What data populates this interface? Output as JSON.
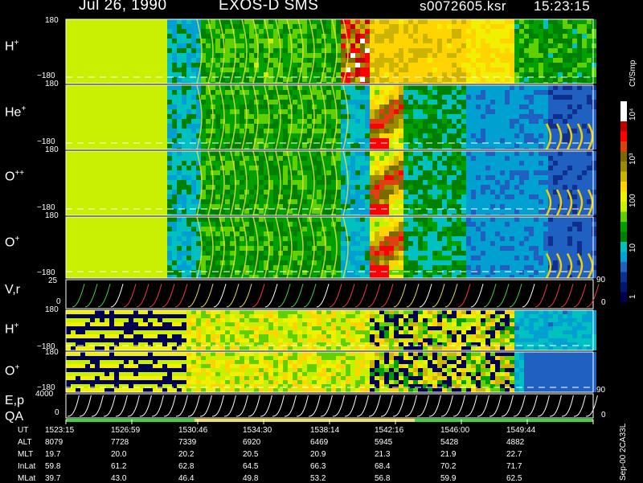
{
  "header": {
    "date": "Jul 26, 1990",
    "instrument": "EXOS-D SMS",
    "file": "s0072605.ksr",
    "time": "15:23:15"
  },
  "colorbar": {
    "title": "Ct/Smp",
    "labels": [
      "10⁴",
      "10³",
      "100",
      "10",
      "1"
    ],
    "colors": [
      "#ffffff",
      "#ffffff",
      "#c00000",
      "#ff0000",
      "#e04010",
      "#7a6a00",
      "#9a8a00",
      "#ccb400",
      "#ffd400",
      "#f0f000",
      "#c8f000",
      "#60d000",
      "#00a000",
      "#008000",
      "#00c0c0",
      "#00a0d0",
      "#2060c0",
      "#103090",
      "#001870",
      "#000050"
    ]
  },
  "panels": [
    {
      "label": "H",
      "charge": "+",
      "ytop": "180",
      "ybot": "−180"
    },
    {
      "label": "He",
      "charge": "+",
      "ytop": "180",
      "ybot": "−180"
    },
    {
      "label": "O",
      "charge": "++",
      "ytop": "180",
      "ybot": "−180"
    },
    {
      "label": "O",
      "charge": "+",
      "ytop": "180",
      "ybot": "−180"
    }
  ],
  "vr_panel": {
    "label": "V,r",
    "ytop": "25",
    "ybot": "0",
    "rtop": "90",
    "rbot": "0"
  },
  "panels2": [
    {
      "label": "H",
      "charge": "+",
      "ytop": "180",
      "ybot": "−180"
    },
    {
      "label": "O",
      "charge": "+",
      "ytop": "180",
      "ybot": "−180"
    }
  ],
  "ep_panel": {
    "label1": "E,p",
    "label2": "QA",
    "ytop": "4000",
    "ybot": "0",
    "rtop": "90",
    "rbot": "0"
  },
  "footer_note": "Sep-00 2CA33L",
  "ut_table": {
    "rows": [
      {
        "name": "UT",
        "values": [
          "1523:15",
          "1526:59",
          "1530:46",
          "1534:30",
          "1538:14",
          "1542:16",
          "1546:00",
          "1549:44"
        ]
      },
      {
        "name": "ALT",
        "values": [
          "8079",
          "7728",
          "7339",
          "6920",
          "6469",
          "5945",
          "5428",
          "4882"
        ]
      },
      {
        "name": "MLT",
        "values": [
          "19.7",
          "20.0",
          "20.2",
          "20.5",
          "20.9",
          "21.3",
          "21.9",
          "22.7"
        ]
      },
      {
        "name": "InLat",
        "values": [
          "59.8",
          "61.2",
          "62.8",
          "64.5",
          "66.3",
          "68.4",
          "70.2",
          "71.7"
        ]
      },
      {
        "name": "MLat",
        "values": [
          "39.7",
          "43.0",
          "46.4",
          "49.8",
          "53.2",
          "56.8",
          "59.9",
          "62.5"
        ]
      }
    ]
  },
  "chart_data": {
    "type": "heatmap",
    "title": "EXOS-D SMS",
    "colorbar_label": "Ct/Smp",
    "colorbar_ticks": [
      "1",
      "10",
      "100",
      "10³",
      "10⁴"
    ],
    "panels": [
      {
        "label": "H+",
        "ylim": [
          -180,
          180
        ]
      },
      {
        "label": "He+",
        "ylim": [
          -180,
          180
        ]
      },
      {
        "label": "O++",
        "ylim": [
          -180,
          180
        ]
      },
      {
        "label": "O+",
        "ylim": [
          -180,
          180
        ]
      },
      {
        "label": "V,r",
        "ylim": [
          0,
          25
        ],
        "right_ylim": [
          0,
          90
        ]
      },
      {
        "label": "H+",
        "ylim": [
          -180,
          180
        ]
      },
      {
        "label": "O+",
        "ylim": [
          -180,
          180
        ]
      },
      {
        "label": "E,p",
        "ylim": [
          0,
          4000
        ],
        "right_ylim": [
          0,
          90
        ]
      }
    ],
    "x_ticks": [
      "1523:15",
      "1526:59",
      "1530:46",
      "1534:30",
      "1538:14",
      "1542:16",
      "1546:00",
      "1549:44"
    ]
  }
}
